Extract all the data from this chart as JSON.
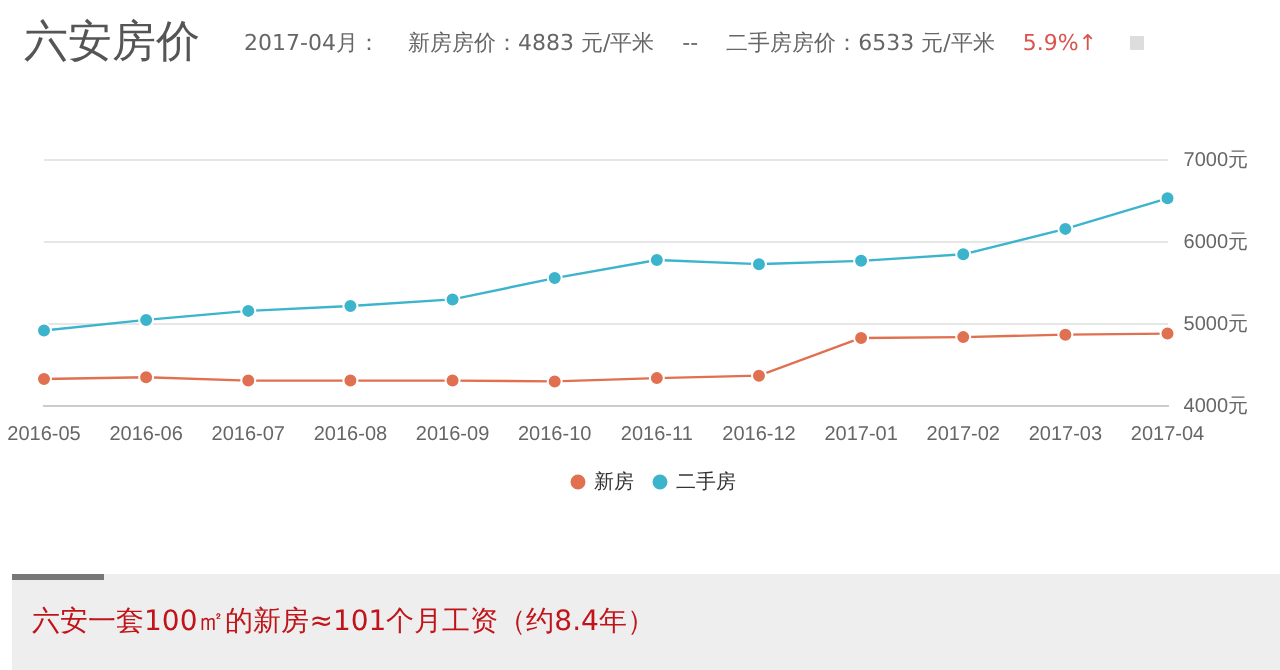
{
  "chart_data": {
    "type": "line",
    "title": "六安房价",
    "annotations": [
      "2017-04月：",
      "新房房价：4883 元/平米",
      "--",
      "二手房房价：6533 元/平米",
      "5.9%↑",
      "六安一套100㎡的新房≈101个月工资（约8.4年）"
    ],
    "categories": [
      "2016-05",
      "2016-06",
      "2016-07",
      "2016-08",
      "2016-09",
      "2016-10",
      "2016-11",
      "2016-12",
      "2017-01",
      "2017-02",
      "2017-03",
      "2017-04"
    ],
    "series": [
      {
        "name": "新房",
        "color": "#e0704f",
        "values": [
          4330,
          4350,
          4310,
          4310,
          4310,
          4300,
          4340,
          4370,
          4830,
          4840,
          4870,
          4883
        ]
      },
      {
        "name": "二手房",
        "color": "#3cb4cc",
        "values": [
          4920,
          5050,
          5160,
          5220,
          5300,
          5560,
          5780,
          5730,
          5770,
          5850,
          6160,
          6533
        ]
      }
    ],
    "ylim": [
      4000,
      7000
    ],
    "yticks": [
      {
        "value": 4000,
        "label": "4000元"
      },
      {
        "value": 5000,
        "label": "5000元"
      },
      {
        "value": 6000,
        "label": "6000元"
      },
      {
        "value": 7000,
        "label": "7000元"
      }
    ],
    "grid": "y",
    "legend": "bottom",
    "marker": "circle",
    "line_style": "solid"
  }
}
